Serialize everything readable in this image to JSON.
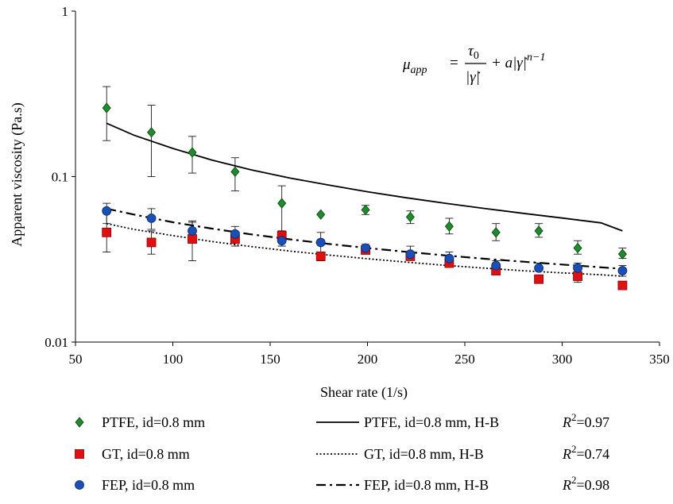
{
  "chart_data": {
    "type": "scatter",
    "title": "",
    "xlabel": "Shear rate (1/s)",
    "ylabel": "Apparent viscosity (Pa.s)",
    "xlim": [
      50,
      350
    ],
    "ylim": [
      0.01,
      1
    ],
    "yscale": "log",
    "grid": false,
    "x_ticks": [
      "50",
      "100",
      "150",
      "200",
      "250",
      "300",
      "350"
    ],
    "y_ticks": [
      "0.01",
      "0.1",
      "1"
    ],
    "annotation": {
      "lhs": "μ",
      "lhs_sub": "app",
      "eq": "=",
      "num": "τ",
      "num_sub": "0",
      "den": "|γ̇|",
      "rhs": "+ a|γ̇|",
      "rhs_sup": "n−1"
    },
    "series": [
      {
        "name": "PTFE, id=0.8 mm",
        "marker": "diamond",
        "color": "#1e8c2a",
        "x": [
          66,
          89,
          110,
          132,
          156,
          176,
          199,
          222,
          242,
          266,
          288,
          308,
          331
        ],
        "y": [
          0.26,
          0.185,
          0.14,
          0.107,
          0.069,
          0.059,
          0.063,
          0.057,
          0.05,
          0.046,
          0.047,
          0.037,
          0.034
        ],
        "err_low": [
          0.165,
          0.1,
          0.105,
          0.082,
          0.038,
          0.0,
          0.059,
          0.052,
          0.045,
          0.041,
          0.043,
          0.034,
          0.032
        ],
        "err_high": [
          0.35,
          0.27,
          0.175,
          0.13,
          0.088,
          0.067,
          0.067,
          0.062,
          0.056,
          0.052,
          0.052,
          0.041,
          0.037
        ]
      },
      {
        "name": "GT, id=0.8 mm",
        "marker": "square",
        "color": "#e01010",
        "x": [
          66,
          89,
          110,
          132,
          156,
          176,
          199,
          222,
          242,
          266,
          288,
          308,
          331
        ],
        "y": [
          0.046,
          0.04,
          0.042,
          0.042,
          0.044,
          0.033,
          0.036,
          0.033,
          0.03,
          0.027,
          0.024,
          0.025,
          0.022
        ],
        "err_low": [
          0.035,
          0.034,
          0.031,
          0.038,
          0.042,
          0.031,
          0.035,
          0.032,
          0.029,
          0.026,
          0.023,
          0.023,
          0.021
        ],
        "err_high": [
          0.062,
          0.047,
          0.053,
          0.046,
          0.047,
          0.035,
          0.038,
          0.034,
          0.031,
          0.028,
          0.025,
          0.027,
          0.023
        ]
      },
      {
        "name": "FEP, id=0.8 mm",
        "marker": "circle",
        "color": "#1a4fb8",
        "x": [
          66,
          89,
          110,
          132,
          156,
          176,
          199,
          222,
          242,
          266,
          288,
          308,
          331
        ],
        "y": [
          0.062,
          0.056,
          0.047,
          0.045,
          0.041,
          0.04,
          0.037,
          0.034,
          0.032,
          0.029,
          0.028,
          0.028,
          0.027
        ],
        "err_low": [
          0.052,
          0.048,
          0.04,
          0.04,
          0.038,
          0.034,
          0.035,
          0.032,
          0.03,
          0.028,
          0.027,
          0.026,
          0.025
        ],
        "err_high": [
          0.069,
          0.064,
          0.054,
          0.05,
          0.045,
          0.046,
          0.039,
          0.038,
          0.035,
          0.031,
          0.03,
          0.03,
          0.029
        ]
      }
    ],
    "fits": [
      {
        "name": "PTFE, id=0.8 mm, H-B",
        "style": "solid",
        "r2_label": "R",
        "r2_sup": "2",
        "r2_value": "=0.97",
        "x": [
          66,
          80,
          100,
          120,
          140,
          160,
          180,
          200,
          220,
          240,
          260,
          280,
          300,
          320,
          331
        ],
        "y": [
          0.21,
          0.178,
          0.148,
          0.126,
          0.11,
          0.098,
          0.089,
          0.081,
          0.0745,
          0.069,
          0.0642,
          0.06,
          0.0562,
          0.0525,
          0.047
        ]
      },
      {
        "name": "GT, id=0.8 mm, H-B",
        "style": "dotted",
        "r2_label": "R",
        "r2_sup": "2",
        "r2_value": "=0.74",
        "x": [
          66,
          80,
          100,
          120,
          140,
          160,
          180,
          200,
          220,
          240,
          260,
          280,
          300,
          320,
          331
        ],
        "y": [
          0.052,
          0.048,
          0.044,
          0.0405,
          0.0378,
          0.0355,
          0.0336,
          0.0319,
          0.0304,
          0.0291,
          0.028,
          0.027,
          0.0262,
          0.0255,
          0.025
        ]
      },
      {
        "name": "FEP, id=0.8 mm, H-B",
        "style": "dashdot",
        "r2_label": "R",
        "r2_sup": "2",
        "r2_value": "=0.98",
        "x": [
          66,
          80,
          100,
          120,
          140,
          160,
          180,
          200,
          220,
          240,
          260,
          280,
          300,
          320,
          331
        ],
        "y": [
          0.064,
          0.059,
          0.053,
          0.0485,
          0.0448,
          0.0418,
          0.0392,
          0.037,
          0.0351,
          0.0334,
          0.0319,
          0.0306,
          0.0294,
          0.0283,
          0.0277
        ]
      }
    ]
  }
}
